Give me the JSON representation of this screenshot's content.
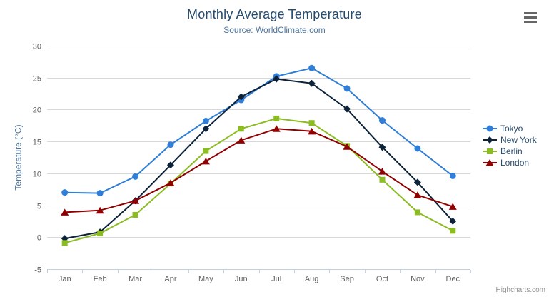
{
  "chart_data": {
    "type": "line",
    "title": "Monthly Average Temperature",
    "subtitle": "Source: WorldClimate.com",
    "categories": [
      "Jan",
      "Feb",
      "Mar",
      "Apr",
      "May",
      "Jun",
      "Jul",
      "Aug",
      "Sep",
      "Oct",
      "Nov",
      "Dec"
    ],
    "series": [
      {
        "name": "Tokyo",
        "color": "#2f7ed8",
        "marker": "circle",
        "values": [
          7.0,
          6.9,
          9.5,
          14.5,
          18.2,
          21.5,
          25.2,
          26.5,
          23.3,
          18.3,
          13.9,
          9.6
        ]
      },
      {
        "name": "New York",
        "color": "#0d233a",
        "marker": "diamond",
        "values": [
          -0.2,
          0.8,
          5.7,
          11.3,
          17.0,
          22.0,
          24.8,
          24.1,
          20.1,
          14.1,
          8.6,
          2.5
        ]
      },
      {
        "name": "Berlin",
        "color": "#8bbc21",
        "marker": "square",
        "values": [
          -0.9,
          0.6,
          3.5,
          8.4,
          13.5,
          17.0,
          18.6,
          17.9,
          14.3,
          9.0,
          3.9,
          1.0
        ]
      },
      {
        "name": "London",
        "color": "#910000",
        "marker": "triangle",
        "values": [
          3.9,
          4.2,
          5.7,
          8.5,
          11.9,
          15.2,
          17.0,
          16.6,
          14.2,
          10.3,
          6.6,
          4.8
        ]
      }
    ],
    "xlabel": "",
    "ylabel": "Temperature (°C)",
    "ylim": [
      -5,
      30
    ],
    "yticks": [
      -5,
      0,
      5,
      10,
      15,
      20,
      25,
      30
    ],
    "grid": true,
    "legend_position": "right"
  },
  "credits": {
    "label": "Highcharts.com"
  },
  "style": {
    "title_color": "#274b6d",
    "subtitle_color": "#4d759e",
    "axis_title_color": "#4d759e",
    "tick_label_color": "#606060",
    "grid_color": "#d8d8d8",
    "axis_line_color": "#c0d0e0",
    "legend_text_color": "#274b6d",
    "credits_color": "#909090",
    "background": "#ffffff",
    "menu_icon_color": "#666666"
  }
}
